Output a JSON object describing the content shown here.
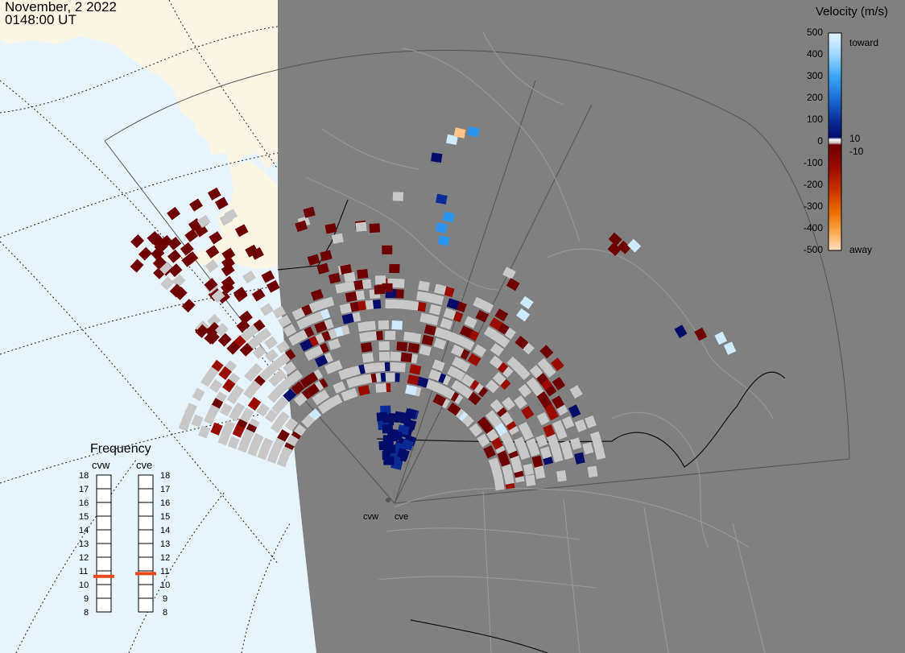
{
  "header": {
    "date": "November, 2 2022",
    "time": "0148:00 UT"
  },
  "velocity_legend": {
    "title": "Velocity (m/s)",
    "ticks": [
      "500",
      "400",
      "300",
      "200",
      "100",
      "0",
      "-100",
      "-200",
      "-300",
      "-400",
      "-500"
    ],
    "toward_label": "toward",
    "away_label": "away",
    "small_pos": "10",
    "small_neg": "-10",
    "colors_toward": [
      "#cfe9ff",
      "#7cc6ff",
      "#2a95f0",
      "#1a5fcf",
      "#0a2a96",
      "#050d6b"
    ],
    "colors_away": [
      "#6e0000",
      "#9a0c00",
      "#c02c00",
      "#e05400",
      "#f48a20",
      "#ffc48a",
      "#ffe6cc"
    ],
    "zero_color": "#c8c8c8"
  },
  "frequency": {
    "title": "Frequency",
    "left_radar": "cvw",
    "right_radar": "cve",
    "ticks": [
      "18",
      "17",
      "16",
      "15",
      "14",
      "13",
      "12",
      "11",
      "10",
      "9",
      "8"
    ],
    "cvw_mhz": 10.6,
    "cve_mhz": 10.8,
    "marker_color": "#e8481c"
  },
  "radars": {
    "west_label": "cvw",
    "east_label": "cve"
  },
  "map_colors": {
    "ocean": "#e8f4fc",
    "land_outside": "#fbf6e4",
    "night": "#808080",
    "borders": "#9a9a9a",
    "fov": "#555555",
    "ground_scatter": "#c8c8c8"
  }
}
